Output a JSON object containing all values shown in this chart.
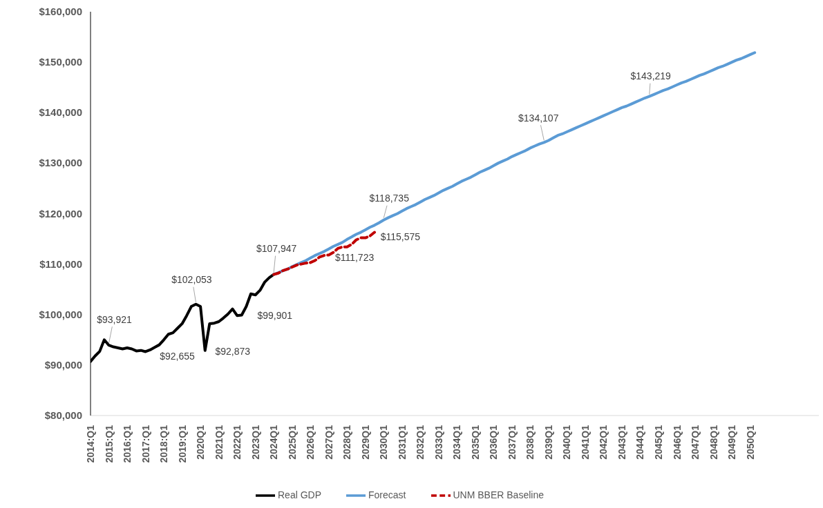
{
  "chart_data": {
    "type": "line",
    "categories": [
      "2014:Q1",
      null,
      null,
      null,
      "2015:Q1",
      null,
      null,
      null,
      "2016:Q1",
      null,
      null,
      null,
      "2017:Q1",
      null,
      null,
      null,
      "2018:Q1",
      null,
      null,
      null,
      "2019:Q1",
      null,
      null,
      null,
      "2020Q1",
      null,
      null,
      null,
      "2021Q1",
      null,
      null,
      null,
      "2022Q1",
      null,
      null,
      null,
      "2023Q1",
      null,
      null,
      null,
      "2024Q1",
      null,
      null,
      null,
      "2025Q1",
      null,
      null,
      null,
      "2026Q1",
      null,
      null,
      null,
      "2027Q1",
      null,
      null,
      null,
      "2028Q1",
      null,
      null,
      null,
      "2029Q1",
      null,
      null,
      null,
      "2030Q1",
      null,
      null,
      null,
      "2031Q1",
      null,
      null,
      null,
      "2032Q1",
      null,
      null,
      null,
      "2033Q1",
      null,
      null,
      null,
      "2034Q1",
      null,
      null,
      null,
      "2035Q1",
      null,
      null,
      null,
      "2036Q1",
      null,
      null,
      null,
      "2037Q1",
      null,
      null,
      null,
      "2038Q1",
      null,
      null,
      null,
      "2039Q1",
      null,
      null,
      null,
      "2040Q1",
      null,
      null,
      null,
      "2041Q1",
      null,
      null,
      null,
      "2042Q1",
      null,
      null,
      null,
      "2043Q1",
      null,
      null,
      null,
      "2044Q1",
      null,
      null,
      null,
      "2045Q1",
      null,
      null,
      null,
      "2046Q1",
      null,
      null,
      null,
      "2047Q1",
      null,
      null,
      null,
      "2048Q1",
      null,
      null,
      null,
      "2049Q1",
      null,
      null,
      null,
      "2050Q1",
      null,
      null,
      null,
      null,
      null,
      null,
      null,
      null,
      null,
      null,
      null,
      null,
      null,
      null,
      null
    ],
    "series": [
      {
        "name": "Real GDP",
        "color": "#000000",
        "line_style": "solid",
        "values": [
          90700,
          91800,
          92700,
          95000,
          93921,
          93600,
          93400,
          93200,
          93400,
          93200,
          92800,
          92900,
          92655,
          93000,
          93500,
          94000,
          95000,
          96100,
          96400,
          97300,
          98200,
          99800,
          101600,
          102053,
          101600,
          92873,
          98200,
          98300,
          98600,
          99300,
          100100,
          101100,
          99800,
          99901,
          101600,
          104100,
          103900,
          104800,
          106400,
          107300,
          107947,
          null,
          null,
          null,
          null,
          null,
          null,
          null,
          null,
          null,
          null,
          null,
          null,
          null,
          null,
          null,
          null,
          null,
          null,
          null,
          null,
          null,
          null,
          null,
          null,
          null,
          null,
          null,
          null,
          null,
          null,
          null,
          null,
          null,
          null,
          null,
          null,
          null,
          null,
          null,
          null,
          null,
          null,
          null,
          null,
          null,
          null,
          null,
          null,
          null,
          null,
          null,
          null,
          null,
          null,
          null,
          null,
          null,
          null,
          null,
          null,
          null,
          null,
          null,
          null,
          null,
          null,
          null,
          null,
          null,
          null,
          null,
          null,
          null,
          null,
          null,
          null,
          null,
          null,
          null,
          null,
          null,
          null,
          null,
          null,
          null,
          null,
          null,
          null,
          null,
          null,
          null,
          null,
          null,
          null,
          null,
          null,
          null,
          null,
          null,
          null,
          null,
          null,
          null,
          null,
          null,
          null,
          null,
          null,
          null,
          null,
          null,
          null,
          null,
          null,
          null,
          null,
          null,
          null,
          null
        ],
        "value_labels": [
          null,
          null,
          null,
          null,
          "$93,921",
          null,
          null,
          null,
          null,
          null,
          null,
          null,
          "$92,655",
          null,
          null,
          null,
          null,
          null,
          null,
          null,
          null,
          null,
          null,
          "$102,053",
          null,
          "$92,873",
          null,
          null,
          null,
          null,
          null,
          null,
          null,
          "$99,901",
          null,
          null,
          null,
          null,
          null,
          null,
          null,
          null,
          null,
          null,
          null,
          null,
          null,
          null,
          null,
          null,
          null,
          null,
          null,
          null,
          null,
          null,
          null,
          null,
          null,
          null,
          null,
          null,
          null,
          null,
          null,
          null,
          null,
          null,
          null,
          null,
          null,
          null,
          null,
          null,
          null,
          null,
          null,
          null,
          null,
          null,
          null,
          null,
          null,
          null,
          null,
          null,
          null,
          null,
          null,
          null,
          null,
          null,
          null,
          null,
          null,
          null,
          null,
          null,
          null,
          null,
          null,
          null,
          null,
          null,
          null,
          null,
          null,
          null,
          null,
          null,
          null,
          null,
          null,
          null,
          null,
          null,
          null,
          null,
          null,
          null,
          null,
          null,
          null,
          null,
          null,
          null,
          null,
          null,
          null,
          null,
          null,
          null,
          null,
          null,
          null,
          null,
          null,
          null,
          null,
          null,
          null,
          null,
          null,
          null,
          null,
          null,
          null,
          null,
          null,
          null,
          null,
          null,
          null,
          null,
          null,
          null,
          null,
          null,
          null,
          null
        ]
      },
      {
        "name": "Forecast",
        "color": "#5b9bd5",
        "line_style": "solid",
        "values": [
          null,
          null,
          null,
          null,
          null,
          null,
          null,
          null,
          null,
          null,
          null,
          null,
          null,
          null,
          null,
          null,
          null,
          null,
          null,
          null,
          null,
          null,
          null,
          null,
          null,
          null,
          null,
          null,
          null,
          null,
          null,
          null,
          null,
          null,
          null,
          null,
          null,
          null,
          null,
          null,
          107947,
          108300,
          108700,
          109000,
          109500,
          109900,
          110300,
          110700,
          111200,
          111700,
          112100,
          112500,
          113000,
          113500,
          113900,
          114300,
          114900,
          115400,
          115900,
          116300,
          116800,
          117300,
          117700,
          118200,
          118735,
          119200,
          119600,
          120000,
          120500,
          121000,
          121400,
          121800,
          122300,
          122800,
          123200,
          123600,
          124100,
          124600,
          125000,
          125400,
          125900,
          126400,
          126800,
          127200,
          127700,
          128200,
          128600,
          129000,
          129500,
          130000,
          130400,
          130800,
          131300,
          131700,
          132100,
          132500,
          133000,
          133400,
          133800,
          134107,
          134500,
          135000,
          135500,
          135800,
          136200,
          136600,
          137000,
          137400,
          137800,
          138200,
          138600,
          139000,
          139400,
          139800,
          140200,
          140600,
          141000,
          141300,
          141700,
          142100,
          142500,
          142900,
          143219,
          143600,
          144000,
          144400,
          144700,
          145100,
          145500,
          145900,
          146200,
          146600,
          147000,
          147400,
          147700,
          148100,
          148500,
          148900,
          149200,
          149600,
          150000,
          150400,
          150700,
          151100,
          151500,
          151900,
          null,
          null,
          null,
          null,
          null,
          null,
          null,
          null,
          null,
          null,
          null,
          null,
          null,
          null
        ],
        "value_labels": [
          null,
          null,
          null,
          null,
          null,
          null,
          null,
          null,
          null,
          null,
          null,
          null,
          null,
          null,
          null,
          null,
          null,
          null,
          null,
          null,
          null,
          null,
          null,
          null,
          null,
          null,
          null,
          null,
          null,
          null,
          null,
          null,
          null,
          null,
          null,
          null,
          null,
          null,
          null,
          null,
          "$107,947",
          null,
          null,
          null,
          null,
          null,
          null,
          null,
          null,
          null,
          null,
          null,
          null,
          null,
          null,
          null,
          null,
          null,
          null,
          null,
          null,
          null,
          null,
          null,
          "$118,735",
          null,
          null,
          null,
          null,
          null,
          null,
          null,
          null,
          null,
          null,
          null,
          null,
          null,
          null,
          null,
          null,
          null,
          null,
          null,
          null,
          null,
          null,
          null,
          null,
          null,
          null,
          null,
          null,
          null,
          null,
          null,
          null,
          null,
          null,
          "$134,107",
          null,
          null,
          null,
          null,
          null,
          null,
          null,
          null,
          null,
          null,
          null,
          null,
          null,
          null,
          null,
          null,
          null,
          null,
          null,
          null,
          null,
          null,
          "$143,219",
          null,
          null,
          null,
          null,
          null,
          null,
          null,
          null,
          null,
          null,
          null,
          null,
          null,
          null,
          null,
          null,
          null,
          null,
          null,
          null,
          null,
          null,
          null,
          null,
          null,
          null,
          null,
          null,
          null,
          null,
          null,
          null,
          null,
          null,
          null,
          null,
          null
        ]
      },
      {
        "name": "UNM BBER Baseline",
        "color": "#c00000",
        "line_style": "dashed",
        "values": [
          null,
          null,
          null,
          null,
          null,
          null,
          null,
          null,
          null,
          null,
          null,
          null,
          null,
          null,
          null,
          null,
          null,
          null,
          null,
          null,
          null,
          null,
          null,
          null,
          null,
          null,
          null,
          null,
          null,
          null,
          null,
          null,
          null,
          null,
          null,
          null,
          null,
          null,
          null,
          null,
          107947,
          108200,
          108700,
          109000,
          109400,
          109800,
          110000,
          110200,
          110300,
          110700,
          111400,
          111723,
          111800,
          112300,
          113100,
          113400,
          113400,
          113900,
          114800,
          115200,
          115200,
          115575,
          116300,
          null,
          null,
          null,
          null,
          null,
          null,
          null,
          null,
          null,
          null,
          null,
          null,
          null,
          null,
          null,
          null,
          null,
          null,
          null,
          null,
          null,
          null,
          null,
          null,
          null,
          null,
          null,
          null,
          null,
          null,
          null,
          null,
          null,
          null,
          null,
          null,
          null,
          null,
          null,
          null,
          null,
          null,
          null,
          null,
          null,
          null,
          null,
          null,
          null,
          null,
          null,
          null,
          null,
          null,
          null,
          null,
          null,
          null,
          null,
          null,
          null,
          null,
          null,
          null,
          null,
          null,
          null,
          null,
          null,
          null,
          null,
          null,
          null,
          null,
          null,
          null,
          null,
          null,
          null,
          null,
          null,
          null,
          null,
          null,
          null,
          null,
          null,
          null,
          null,
          null,
          null,
          null,
          null,
          null,
          null,
          null,
          null
        ],
        "value_labels": [
          null,
          null,
          null,
          null,
          null,
          null,
          null,
          null,
          null,
          null,
          null,
          null,
          null,
          null,
          null,
          null,
          null,
          null,
          null,
          null,
          null,
          null,
          null,
          null,
          null,
          null,
          null,
          null,
          null,
          null,
          null,
          null,
          null,
          null,
          null,
          null,
          null,
          null,
          null,
          null,
          null,
          null,
          null,
          null,
          null,
          null,
          null,
          null,
          null,
          null,
          null,
          "$111,723",
          null,
          null,
          null,
          null,
          null,
          null,
          null,
          null,
          null,
          "$115,575",
          null,
          null,
          null,
          null,
          null,
          null,
          null,
          null,
          null,
          null,
          null,
          null,
          null,
          null,
          null,
          null,
          null,
          null,
          null,
          null,
          null,
          null,
          null,
          null,
          null,
          null,
          null,
          null,
          null,
          null,
          null,
          null,
          null,
          null,
          null,
          null,
          null,
          null,
          null,
          null,
          null,
          null,
          null,
          null,
          null,
          null,
          null,
          null,
          null,
          null,
          null,
          null,
          null,
          null,
          null,
          null,
          null,
          null,
          null,
          null,
          null,
          null,
          null,
          null,
          null,
          null,
          null,
          null,
          null,
          null,
          null,
          null,
          null,
          null,
          null,
          null,
          null,
          null,
          null,
          null,
          null,
          null,
          null,
          null,
          null,
          null,
          null,
          null,
          null,
          null,
          null,
          null,
          null,
          null,
          null,
          null,
          null,
          null
        ]
      }
    ],
    "ylim": [
      80000,
      160000
    ],
    "yticks": [
      {
        "value": 80000,
        "label": "$80,000"
      },
      {
        "value": 90000,
        "label": "$90,000"
      },
      {
        "value": 100000,
        "label": "$100,000"
      },
      {
        "value": 110000,
        "label": "$110,000"
      },
      {
        "value": 120000,
        "label": "$120,000"
      },
      {
        "value": 130000,
        "label": "$130,000"
      },
      {
        "value": 140000,
        "label": "$140,000"
      },
      {
        "value": 150000,
        "label": "$150,000"
      },
      {
        "value": 160000,
        "label": "$160,000"
      }
    ],
    "grid": false,
    "legend": "bottom",
    "marker": "none"
  }
}
